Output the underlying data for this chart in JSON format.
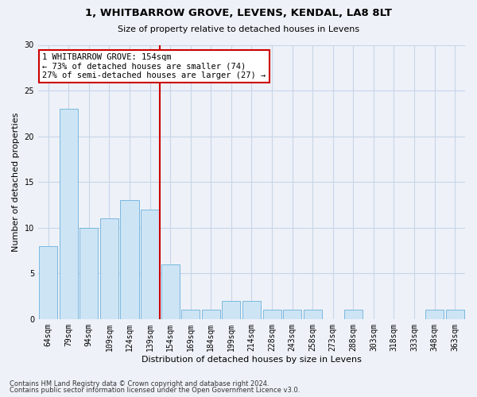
{
  "title1": "1, WHITBARROW GROVE, LEVENS, KENDAL, LA8 8LT",
  "title2": "Size of property relative to detached houses in Levens",
  "xlabel": "Distribution of detached houses by size in Levens",
  "ylabel": "Number of detached properties",
  "categories": [
    "64sqm",
    "79sqm",
    "94sqm",
    "109sqm",
    "124sqm",
    "139sqm",
    "154sqm",
    "169sqm",
    "184sqm",
    "199sqm",
    "214sqm",
    "228sqm",
    "243sqm",
    "258sqm",
    "273sqm",
    "288sqm",
    "303sqm",
    "318sqm",
    "333sqm",
    "348sqm",
    "363sqm"
  ],
  "values": [
    8,
    23,
    10,
    11,
    13,
    12,
    6,
    1,
    1,
    2,
    2,
    1,
    1,
    1,
    0,
    1,
    0,
    0,
    0,
    1,
    1
  ],
  "bar_color": "#cde4f5",
  "bar_edge_color": "#7ab8de",
  "vline_index": 5.5,
  "annotation_text_line1": "1 WHITBARROW GROVE: 154sqm",
  "annotation_text_line2": "← 73% of detached houses are smaller (74)",
  "annotation_text_line3": "27% of semi-detached houses are larger (27) →",
  "ylim": [
    0,
    30
  ],
  "yticks": [
    0,
    5,
    10,
    15,
    20,
    25,
    30
  ],
  "footer1": "Contains HM Land Registry data © Crown copyright and database right 2024.",
  "footer2": "Contains public sector information licensed under the Open Government Licence v3.0.",
  "bg_color": "#eef2f8",
  "grid_color": "#c8d4e8",
  "annotation_box_facecolor": "#ffffff",
  "annotation_box_edgecolor": "#cc0000",
  "vline_color": "#cc0000",
  "title1_fontsize": 9.5,
  "title2_fontsize": 8,
  "ylabel_fontsize": 8,
  "xlabel_fontsize": 8,
  "tick_fontsize": 7,
  "footer_fontsize": 6,
  "annot_fontsize": 7.5
}
